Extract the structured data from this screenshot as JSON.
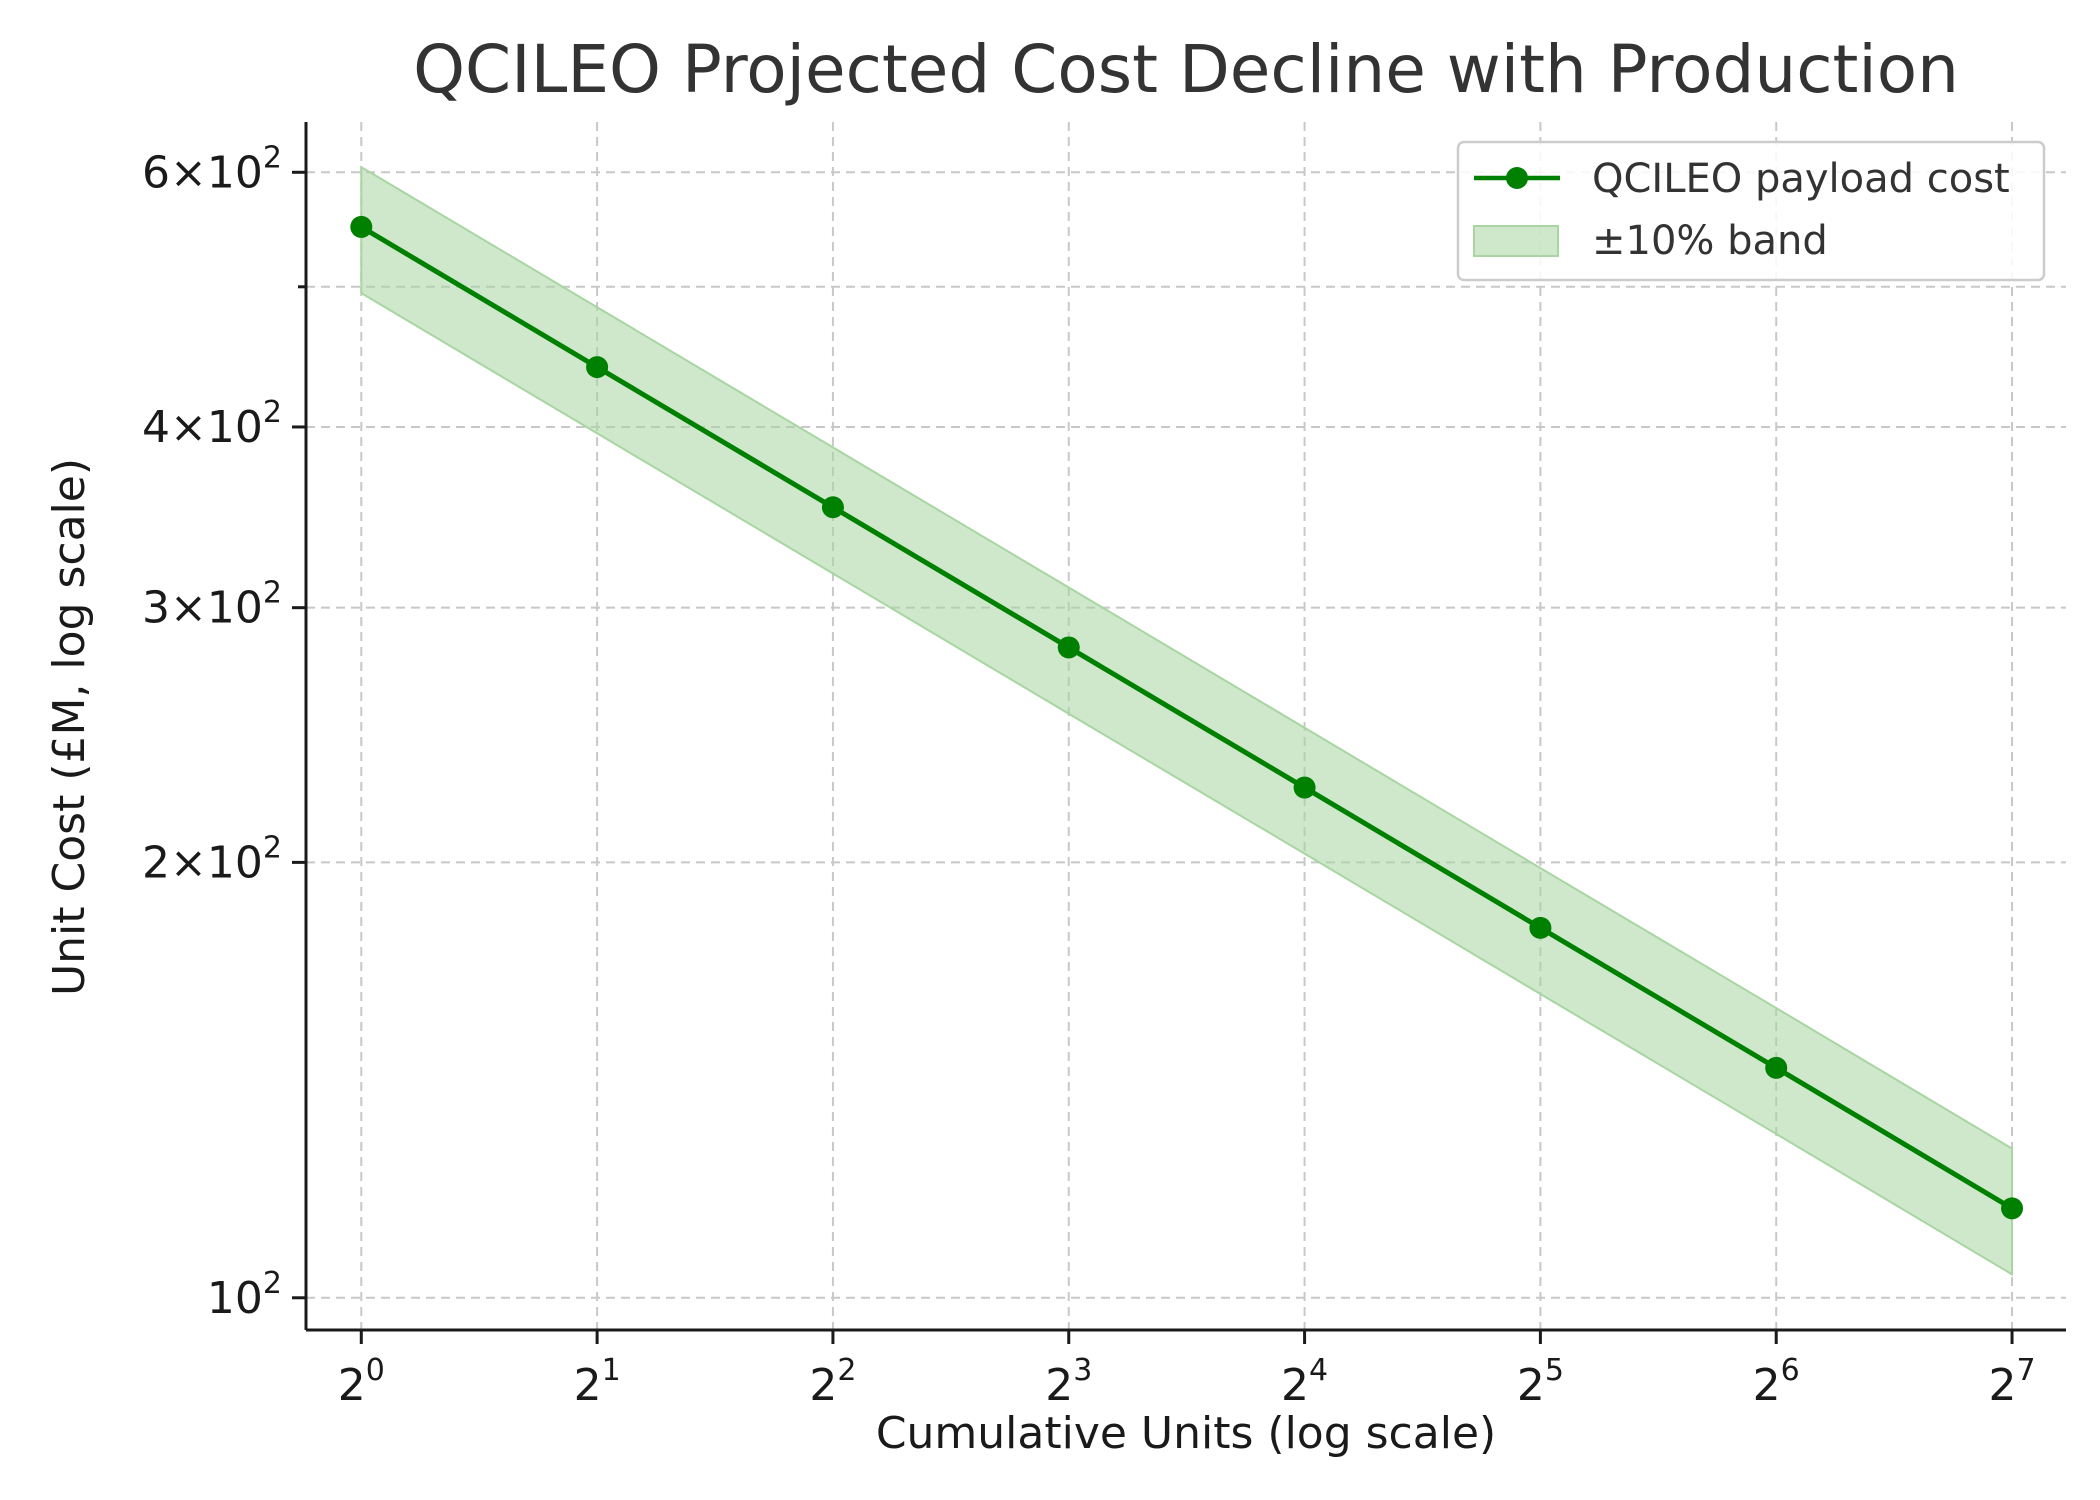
{
  "chart_data": {
    "type": "line",
    "title": "QCILEO Projected Cost Decline with Production",
    "xlabel": "Cumulative Units (log scale)",
    "ylabel": "Unit Cost (£M, log scale)",
    "x_scale": "log2",
    "y_scale": "log10",
    "xlim": [
      0.85,
      150
    ],
    "ylim": [
      95,
      650
    ],
    "grid": true,
    "legend_position": "top-right",
    "x_ticks": [
      {
        "value": 1,
        "base": "2",
        "exp": "0"
      },
      {
        "value": 2,
        "base": "2",
        "exp": "1"
      },
      {
        "value": 4,
        "base": "2",
        "exp": "2"
      },
      {
        "value": 8,
        "base": "2",
        "exp": "3"
      },
      {
        "value": 16,
        "base": "2",
        "exp": "4"
      },
      {
        "value": 32,
        "base": "2",
        "exp": "5"
      },
      {
        "value": 64,
        "base": "2",
        "exp": "6"
      },
      {
        "value": 128,
        "base": "2",
        "exp": "7"
      }
    ],
    "y_ticks": [
      {
        "value": 100,
        "mant": "",
        "base": "10",
        "exp": "2"
      },
      {
        "value": 200,
        "mant": "2",
        "base": "10",
        "exp": "2"
      },
      {
        "value": 300,
        "mant": "3",
        "base": "10",
        "exp": "2"
      },
      {
        "value": 400,
        "mant": "4",
        "base": "10",
        "exp": "2"
      },
      {
        "value": 600,
        "mant": "6",
        "base": "10",
        "exp": "2"
      }
    ],
    "y_minor_grid": [
      500
    ],
    "x": [
      1,
      2,
      4,
      8,
      16,
      32,
      64,
      128
    ],
    "series": [
      {
        "name": "QCILEO payload cost",
        "color": "#008000",
        "values": [
          550,
          440,
          352,
          281.6,
          225.3,
          180.2,
          144.2,
          115.3
        ]
      }
    ],
    "band": {
      "name": "±10% band",
      "color": "#a8d5a2",
      "lower": [
        495,
        396,
        316.8,
        253.4,
        202.8,
        162.2,
        129.8,
        103.8
      ],
      "upper": [
        605,
        484,
        387.2,
        309.8,
        247.8,
        198.2,
        158.6,
        126.8
      ]
    }
  }
}
